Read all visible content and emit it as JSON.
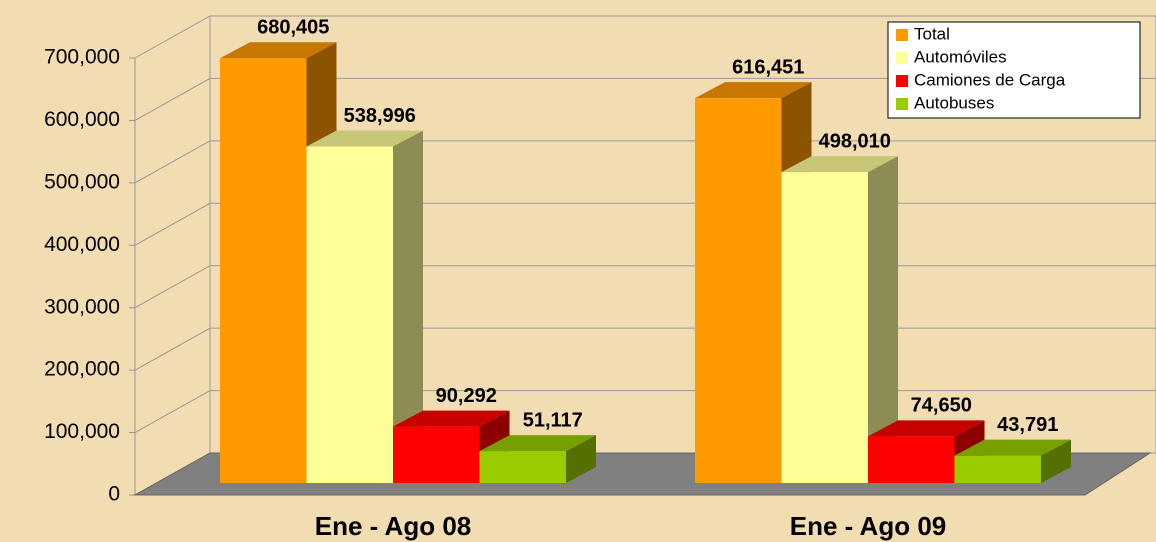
{
  "chart_data": {
    "type": "bar3d",
    "categories": [
      "Ene - Ago 08",
      "Ene - Ago 09"
    ],
    "series": [
      {
        "name": "Total",
        "color": "#ff9900",
        "values": [
          680405,
          616451
        ],
        "value_labels": [
          "680,405",
          "616,451"
        ]
      },
      {
        "name": "Automóviles",
        "color": "#ffff99",
        "values": [
          538996,
          498010
        ],
        "value_labels": [
          "538,996",
          "498,010"
        ]
      },
      {
        "name": "Camiones de Carga",
        "color": "#ff0000",
        "values": [
          90292,
          74650
        ],
        "value_labels": [
          "90,292",
          "74,650"
        ]
      },
      {
        "name": "Autobuses",
        "color": "#99cc00",
        "values": [
          51117,
          43791
        ],
        "value_labels": [
          "51,117",
          "43,791"
        ]
      }
    ],
    "ylim": [
      0,
      700000
    ],
    "yticks": [
      0,
      {
        "value": 100000,
        "label": "100,000"
      },
      {
        "value": 200000,
        "label": "200,000"
      },
      {
        "value": 300000,
        "label": "300,000"
      },
      {
        "value": 400000,
        "label": "400,000"
      },
      {
        "value": 500000,
        "label": "500,000"
      },
      {
        "value": 600000,
        "label": "600,000"
      },
      {
        "value": 700000,
        "label": "700,000"
      }
    ],
    "grid": true,
    "legend": "top-right"
  }
}
